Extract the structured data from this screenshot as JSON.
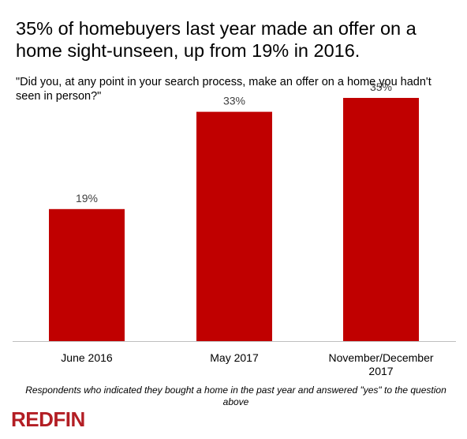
{
  "title": "35% of homebuyers last year made an offer on a home sight-unseen, up from 19% in 2016.",
  "subtitle": "\"Did you, at any point in your search process, make an offer on a home you hadn't seen in person?\"",
  "footnote": "Respondents who indicated they bought a home in the past year and answered  \"yes\" to the question above",
  "logo_text": "REDFIN",
  "colors": {
    "bar": "#c00000",
    "logo": "#b31e24"
  },
  "chart_data": {
    "type": "bar",
    "categories": [
      "June 2016",
      "May 2017",
      "November/December\n2017"
    ],
    "values": [
      19,
      33,
      35
    ],
    "value_labels": [
      "19%",
      "33%",
      "35%"
    ],
    "unit": "%",
    "title": "35% of homebuyers last year made an offer on a home sight-unseen, up from 19% in 2016.",
    "xlabel": "",
    "ylabel": "",
    "ylim": [
      0,
      40
    ],
    "grid": false,
    "legend": "none"
  }
}
